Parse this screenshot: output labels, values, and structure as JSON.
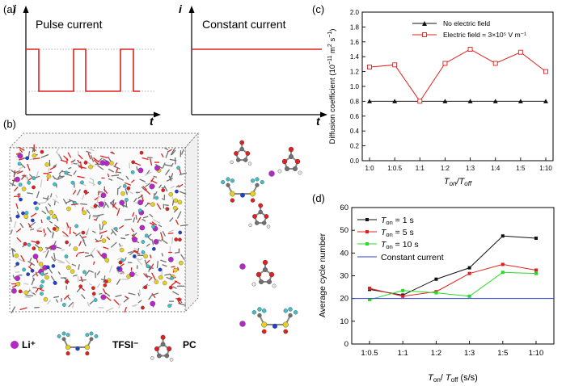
{
  "panels": {
    "a": {
      "label": "(a)"
    },
    "b": {
      "label": "(b)"
    },
    "c": {
      "label": "(c)"
    },
    "d": {
      "label": "(d)"
    }
  },
  "panel_a": {
    "pulse_title": "Pulse current",
    "constant_title": "Constant current",
    "axis_i": "i",
    "axis_t": "t",
    "line_color": "#e0201e"
  },
  "panel_b": {
    "legend_li": "Li⁺",
    "legend_tfsi": "TFSI⁻",
    "legend_pc": "PC",
    "colors": {
      "li": "#b428c8",
      "oxygen": "#e0201e",
      "carbon": "#707070",
      "fluorine": "#40c0c8",
      "sulfur": "#e8d020",
      "nitrogen": "#2040d0",
      "hydrogen": "#e8e8e8"
    }
  },
  "chart_data": [
    {
      "panel": "c",
      "type": "line",
      "categories": [
        "1:0",
        "1:0.5",
        "1:1",
        "1:2",
        "1:3",
        "1:4",
        "1:5",
        "1:10"
      ],
      "xlabel": "Ton/Toff",
      "ylabel": "Diffusion coefficient (10⁻¹¹ m² s⁻¹)",
      "ylim": [
        0.0,
        2.0
      ],
      "yticks": [
        "0.0",
        "0.2",
        "0.4",
        "0.6",
        "0.8",
        "1.0",
        "1.2",
        "1.4",
        "1.6",
        "1.8",
        "2.0"
      ],
      "legend_position": "top-right",
      "series": [
        {
          "name": "No electric field",
          "values": [
            0.8,
            0.8,
            0.8,
            0.8,
            0.8,
            0.8,
            0.8,
            0.8
          ],
          "color": "#111111",
          "marker": "filled-triangle"
        },
        {
          "name": "Electric field = 3×10⁵ V m⁻¹",
          "values": [
            1.26,
            1.29,
            0.8,
            1.31,
            1.5,
            1.31,
            1.46,
            1.2
          ],
          "color": "#e0201e",
          "marker": "open-square"
        }
      ]
    },
    {
      "panel": "d",
      "type": "line",
      "categories": [
        "1:0.5",
        "1:1",
        "1:2",
        "1:3",
        "1:5",
        "1:10"
      ],
      "xlabel": "Ton/ Toff (s/s)",
      "ylabel": "Average cycle number",
      "ylim": [
        0,
        60
      ],
      "yticks": [
        "0",
        "10",
        "20",
        "30",
        "40",
        "50",
        "60"
      ],
      "legend_position": "top-left",
      "series": [
        {
          "name": "Ton = 1 s",
          "values": [
            24,
            21.5,
            28.5,
            33.5,
            47.5,
            46.5
          ],
          "color": "#111111",
          "marker": "filled-square"
        },
        {
          "name": "Ton = 5 s",
          "values": [
            24.5,
            21,
            23,
            31,
            35,
            32.5
          ],
          "color": "#e0201e",
          "marker": "filled-square"
        },
        {
          "name": "Ton = 10 s",
          "values": [
            19.5,
            23.5,
            22.5,
            21,
            31.5,
            31
          ],
          "color": "#22dd22",
          "marker": "filled-square"
        },
        {
          "name": "Constant current",
          "values": [
            20,
            20,
            20,
            20,
            20,
            20
          ],
          "color": "#2a3bd6",
          "marker": "none"
        }
      ]
    }
  ]
}
